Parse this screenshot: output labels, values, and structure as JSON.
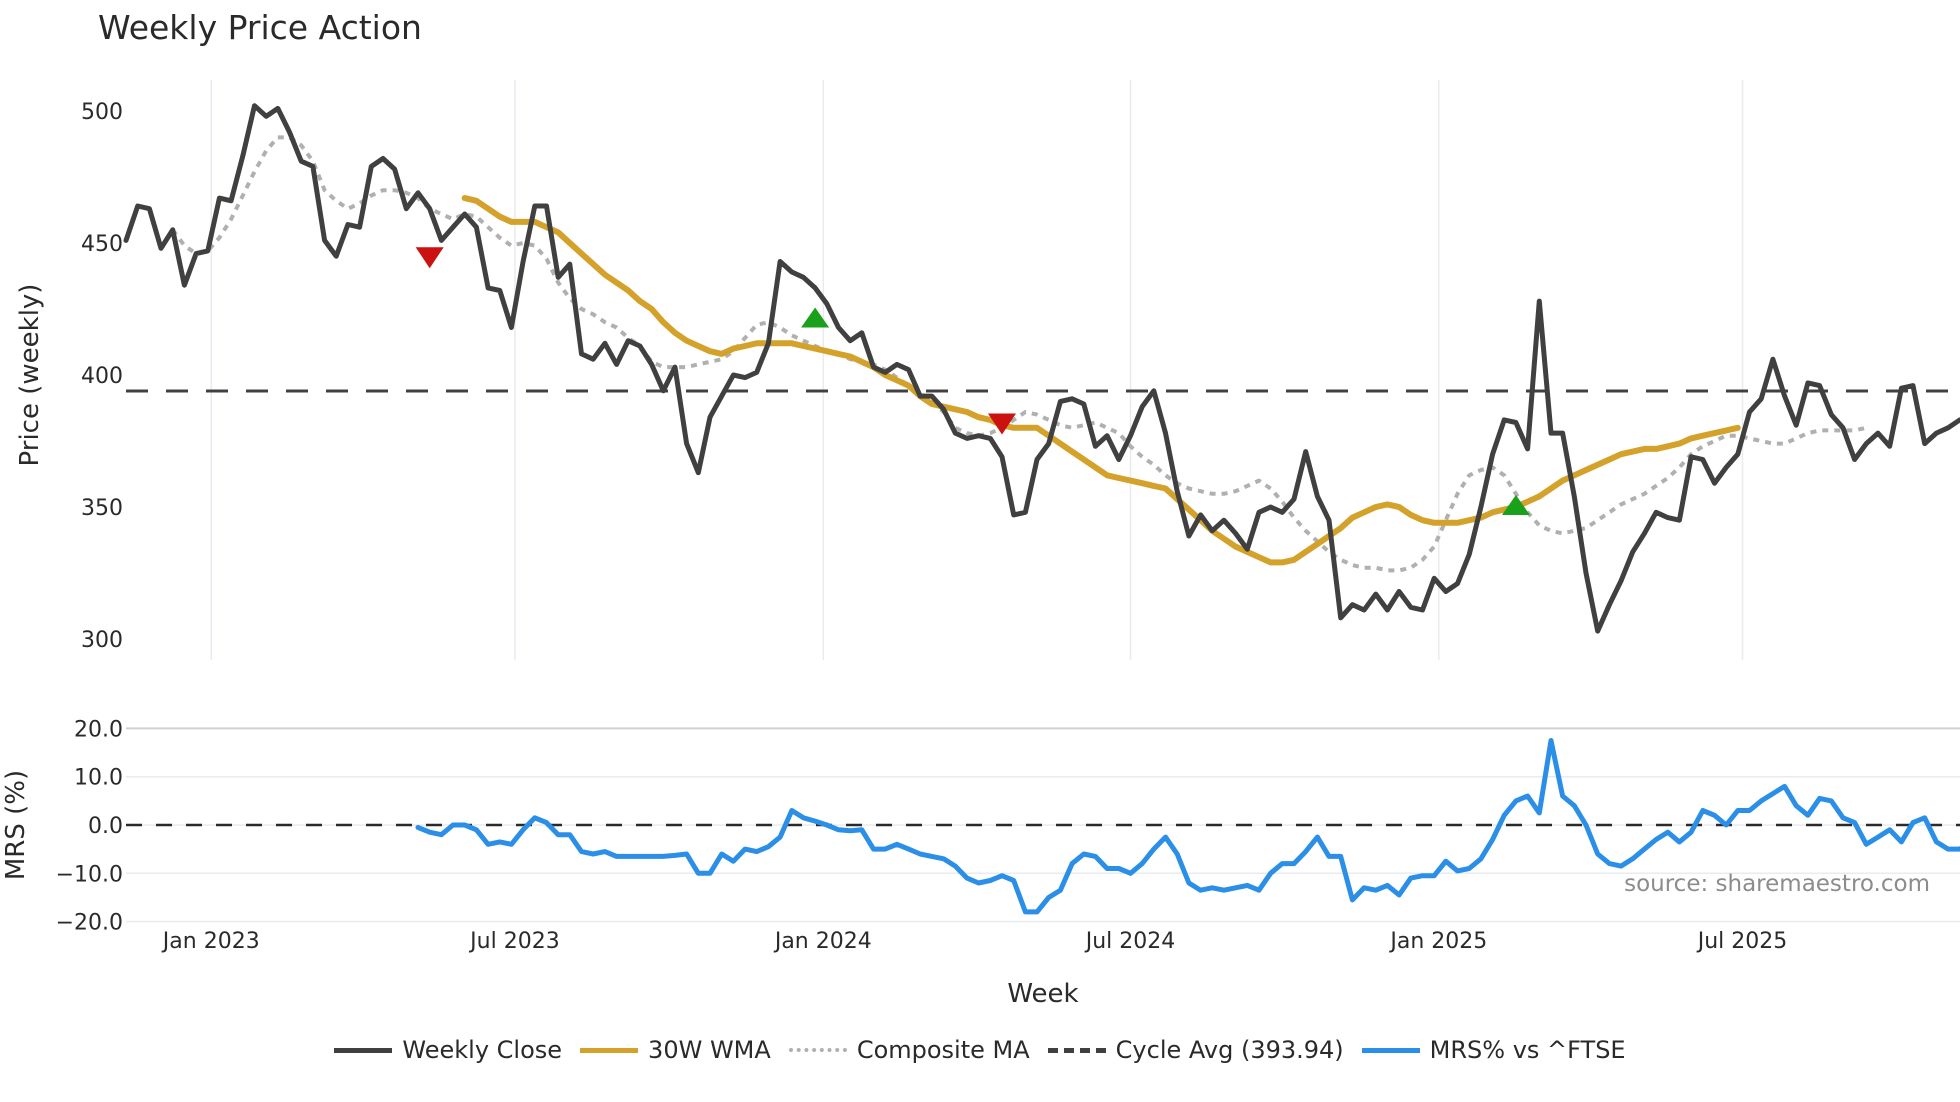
{
  "title": "Weekly Price Action",
  "chart_data": [
    {
      "type": "line",
      "panel": "price",
      "title": "Weekly Price Action",
      "xlabel": "Week",
      "ylabel": "Price (weekly)",
      "ylim": [
        290,
        510
      ],
      "yticks": [
        300,
        350,
        400,
        450,
        500
      ],
      "x_tick_labels": [
        "Jan 2023",
        "Jul 2023",
        "Jan 2024",
        "Jul 2024",
        "Jan 2025",
        "Jul 2025"
      ],
      "x_tick_week_index": [
        7.3,
        33.3,
        59.7,
        86.0,
        112.4,
        138.4
      ],
      "grid": "vertical",
      "series": [
        {
          "name": "Weekly Close",
          "color": "#404040",
          "start_index": 0,
          "values": [
            451,
            464,
            463,
            448,
            455,
            434,
            446,
            447,
            467,
            466,
            483,
            502,
            498,
            501,
            492,
            481,
            479,
            451,
            445,
            457,
            456,
            479,
            482,
            478,
            463,
            469,
            463,
            451,
            456,
            461,
            456,
            433,
            432,
            418,
            443,
            464,
            464,
            437,
            442,
            408,
            406,
            412,
            404,
            413,
            411,
            404,
            394,
            403,
            374,
            363,
            384,
            392,
            400,
            399,
            401,
            412,
            443,
            439,
            437,
            433,
            427,
            418,
            413,
            416,
            403,
            401,
            404,
            402,
            392,
            392,
            387,
            378,
            376,
            377,
            376,
            369,
            347,
            348,
            368,
            374,
            390,
            391,
            389,
            373,
            377,
            368,
            377,
            388,
            394,
            378,
            356,
            339,
            347,
            341,
            345,
            340,
            334,
            348,
            350,
            348,
            353,
            371,
            354,
            345,
            308,
            313,
            311,
            317,
            311,
            318,
            312,
            311,
            323,
            318,
            321,
            332,
            350,
            370,
            383,
            382,
            372,
            428,
            378,
            378,
            354,
            325,
            303,
            313,
            322,
            333,
            340,
            348,
            346,
            345,
            369,
            368,
            359,
            365,
            370,
            386,
            391,
            406,
            392,
            381,
            397,
            396,
            385,
            380,
            368,
            374,
            378,
            373,
            395,
            396,
            374,
            378,
            380,
            383
          ],
          "width": 5
        },
        {
          "name": "30W WMA",
          "color": "#d4a22a",
          "start_index": 29,
          "values": [
            467,
            466,
            463,
            460,
            458,
            458,
            458,
            456,
            454,
            450,
            446,
            442,
            438,
            435,
            432,
            428,
            425,
            420,
            416,
            413,
            411,
            409,
            408,
            410,
            411,
            412,
            412,
            412,
            412,
            411,
            410,
            409,
            408,
            407,
            405,
            403,
            400,
            398,
            396,
            392,
            389,
            388,
            387,
            386,
            384,
            383,
            381,
            380,
            380,
            380,
            377,
            374,
            371,
            368,
            365,
            362,
            361,
            360,
            359,
            358,
            357,
            353,
            349,
            345,
            341,
            338,
            335,
            333,
            331,
            329,
            329,
            330,
            333,
            336,
            339,
            342,
            346,
            348,
            350,
            351,
            350,
            347,
            345,
            344,
            344,
            344,
            345,
            346,
            348,
            349,
            350,
            352,
            354,
            357,
            360,
            362,
            364,
            366,
            368,
            370,
            371,
            372,
            372,
            373,
            374,
            376,
            377,
            378,
            379,
            380
          ],
          "width": 6
        },
        {
          "name": "Composite MA",
          "color": "#b0b0b0",
          "dash": "6 6",
          "start_index": 4,
          "values": [
            455,
            449,
            446,
            447,
            452,
            459,
            468,
            477,
            485,
            490,
            490,
            487,
            481,
            470,
            466,
            463,
            465,
            468,
            470,
            470,
            469,
            467,
            463,
            461,
            459,
            461,
            460,
            456,
            452,
            449,
            450,
            449,
            444,
            435,
            429,
            425,
            423,
            420,
            418,
            414,
            411,
            405,
            403,
            403,
            403,
            404,
            405,
            406,
            409,
            414,
            419,
            420,
            418,
            415,
            413,
            411,
            409,
            408,
            406,
            405,
            404,
            402,
            399,
            396,
            393,
            390,
            386,
            380,
            378,
            377,
            378,
            380,
            383,
            386,
            385,
            383,
            381,
            380,
            381,
            382,
            380,
            378,
            373,
            369,
            366,
            362,
            359,
            357,
            356,
            355,
            355,
            356,
            358,
            360,
            357,
            352,
            346,
            341,
            337,
            333,
            330,
            328,
            327,
            327,
            326,
            326,
            327,
            330,
            335,
            345,
            355,
            362,
            364,
            365,
            362,
            355,
            348,
            343,
            341,
            340,
            341,
            342,
            345,
            348,
            351,
            353,
            355,
            358,
            361,
            365,
            370,
            373,
            375,
            377,
            377,
            376,
            375,
            374,
            374,
            376,
            378,
            379,
            379,
            379,
            379,
            380
          ],
          "width": 4
        },
        {
          "name": "Cycle Avg (393.94)",
          "color": "#404040",
          "dash": "22 18",
          "constant": 393.94,
          "width": 3
        }
      ],
      "signals": [
        {
          "type": "sell",
          "color": "#cc1111",
          "week_index": 26,
          "value": 445
        },
        {
          "type": "buy",
          "color": "#1aa01a",
          "week_index": 59,
          "value": 421
        },
        {
          "type": "sell",
          "color": "#cc1111",
          "week_index": 75,
          "value": 382
        },
        {
          "type": "buy",
          "color": "#1aa01a",
          "week_index": 119,
          "value": 350
        }
      ]
    },
    {
      "type": "line",
      "panel": "mrs",
      "xlabel": "Week",
      "ylabel": "MRS (%)",
      "ylim": [
        -22,
        22
      ],
      "yticks": [
        20.0,
        10.0,
        0.0,
        -10.0,
        -20.0
      ],
      "ytick_labels": [
        "20.0",
        "10.0",
        "0.0",
        "−10.0",
        "−20.0"
      ],
      "series": [
        {
          "name": "MRS% vs ^FTSE",
          "color": "#2b8fe8",
          "start_index": 25,
          "values": [
            -0.5,
            -1.5,
            -2,
            0,
            0,
            -1,
            -4,
            -3.5,
            -4,
            -1,
            1.5,
            0.5,
            -2,
            -2,
            -5.5,
            -6,
            -5.5,
            -6.5,
            -6.5,
            -6.5,
            -6.5,
            -6.5,
            -6.3,
            -6,
            -10,
            -10,
            -6,
            -7.5,
            -5,
            -5.5,
            -4.5,
            -2.5,
            3,
            1.5,
            0.8,
            0,
            -1,
            -1.2,
            -1,
            -5,
            -5,
            -4,
            -5,
            -6,
            -6.5,
            -7,
            -8.5,
            -11,
            -12,
            -11.5,
            -10.5,
            -11.5,
            -18,
            -18,
            -15,
            -13.5,
            -8,
            -6,
            -6.5,
            -9,
            -9,
            -10,
            -8,
            -5,
            -2.5,
            -6,
            -12,
            -13.5,
            -13,
            -13.5,
            -13,
            -12.5,
            -13.5,
            -10,
            -8,
            -8,
            -5.5,
            -2.5,
            -6.5,
            -6.5,
            -15.5,
            -13,
            -13.5,
            -12.5,
            -14.5,
            -11,
            -10.5,
            -10.5,
            -7.5,
            -9.5,
            -9,
            -7,
            -3,
            2,
            5,
            6,
            2.5,
            17.5,
            6,
            4,
            0,
            -6,
            -8,
            -8.5,
            -7,
            -5,
            -3,
            -1.5,
            -3.5,
            -1.5,
            3,
            2,
            0,
            3,
            3,
            5,
            6.5,
            8,
            4,
            2,
            5.5,
            5,
            1.5,
            0.5,
            -4,
            -2.5,
            -1,
            -3.5,
            0.5,
            1.5,
            -3.5,
            -5,
            -5,
            -3.5
          ],
          "width": 5
        },
        {
          "name": "Zero line",
          "color": "#2a2a2a",
          "dash": "16 14",
          "constant": 0,
          "width": 2.5
        }
      ],
      "annotation": "source: sharemaestro.com"
    }
  ],
  "axes": {
    "price_ylabel": "Price (weekly)",
    "mrs_ylabel": "MRS (%)",
    "xlabel": "Week"
  },
  "legend": [
    {
      "label": "Weekly Close",
      "color": "#404040",
      "style": "solid"
    },
    {
      "label": "30W WMA",
      "color": "#d4a22a",
      "style": "solid"
    },
    {
      "label": "Composite MA",
      "color": "#b0b0b0",
      "style": "dotted"
    },
    {
      "label": "Cycle Avg (393.94)",
      "color": "#404040",
      "style": "dashed"
    },
    {
      "label": "MRS% vs ^FTSE",
      "color": "#2b8fe8",
      "style": "solid"
    }
  ],
  "source_text": "source: sharemaestro.com"
}
